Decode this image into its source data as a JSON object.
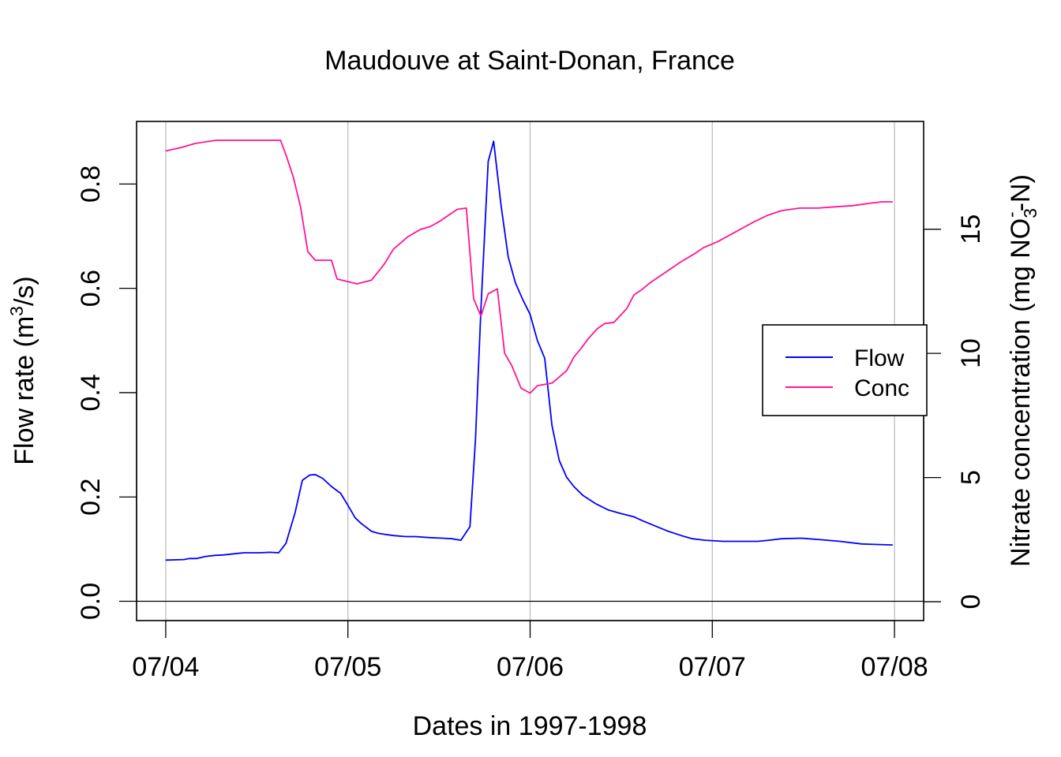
{
  "chart_data": {
    "type": "line",
    "title": "Maudouve at Saint-Donan, France",
    "xlabel": "Dates in 1997-1998",
    "ylabel_left": {
      "main": "Flow rate (m",
      "sup": "3",
      "end": "/s)"
    },
    "ylabel_right": {
      "main": "Nitrate concentration (mg NO",
      "sub": "3",
      "sup": "-",
      "end": "-N)"
    },
    "x_ticks": [
      {
        "value": 0,
        "label": "07/04"
      },
      {
        "value": 1,
        "label": "07/05"
      },
      {
        "value": 2,
        "label": "07/06"
      },
      {
        "value": 3,
        "label": "07/07"
      },
      {
        "value": 4,
        "label": "07/08"
      }
    ],
    "x_range": [
      -0.16,
      4.16
    ],
    "y_left_ticks": [
      {
        "value": 0,
        "label": "0.0"
      },
      {
        "value": 0.2,
        "label": "0.2"
      },
      {
        "value": 0.4,
        "label": "0.4"
      },
      {
        "value": 0.6,
        "label": "0.6"
      },
      {
        "value": 0.8,
        "label": "0.8"
      }
    ],
    "y_left_range": [
      -0.037,
      0.92
    ],
    "y_right_ticks": [
      {
        "value": 0,
        "label": "0"
      },
      {
        "value": 5,
        "label": "5"
      },
      {
        "value": 10,
        "label": "10"
      },
      {
        "value": 15,
        "label": "15"
      }
    ],
    "y_right_range": [
      -0.76,
      19.34
    ],
    "vertical_grid": true,
    "legend_position": "right",
    "series": [
      {
        "name": "Flow",
        "axis": "left",
        "color": "#0000ff",
        "points": [
          [
            0.0,
            0.079
          ],
          [
            0.1,
            0.08
          ],
          [
            0.13,
            0.082
          ],
          [
            0.17,
            0.082
          ],
          [
            0.22,
            0.086
          ],
          [
            0.27,
            0.088
          ],
          [
            0.32,
            0.089
          ],
          [
            0.4,
            0.092
          ],
          [
            0.43,
            0.093
          ],
          [
            0.52,
            0.093
          ],
          [
            0.57,
            0.094
          ],
          [
            0.62,
            0.093
          ],
          [
            0.66,
            0.111
          ],
          [
            0.71,
            0.17
          ],
          [
            0.75,
            0.232
          ],
          [
            0.79,
            0.242
          ],
          [
            0.82,
            0.243
          ],
          [
            0.86,
            0.236
          ],
          [
            0.91,
            0.22
          ],
          [
            0.96,
            0.207
          ],
          [
            1.0,
            0.184
          ],
          [
            1.04,
            0.16
          ],
          [
            1.07,
            0.15
          ],
          [
            1.13,
            0.134
          ],
          [
            1.17,
            0.13
          ],
          [
            1.25,
            0.126
          ],
          [
            1.32,
            0.124
          ],
          [
            1.37,
            0.124
          ],
          [
            1.45,
            0.122
          ],
          [
            1.52,
            0.121
          ],
          [
            1.57,
            0.12
          ],
          [
            1.62,
            0.117
          ],
          [
            1.67,
            0.143
          ],
          [
            1.7,
            0.31
          ],
          [
            1.73,
            0.56
          ],
          [
            1.77,
            0.843
          ],
          [
            1.8,
            0.882
          ],
          [
            1.84,
            0.76
          ],
          [
            1.88,
            0.66
          ],
          [
            1.92,
            0.61
          ],
          [
            1.96,
            0.578
          ],
          [
            2.0,
            0.55
          ],
          [
            2.04,
            0.5
          ],
          [
            2.08,
            0.466
          ],
          [
            2.12,
            0.337
          ],
          [
            2.16,
            0.27
          ],
          [
            2.2,
            0.238
          ],
          [
            2.24,
            0.22
          ],
          [
            2.29,
            0.203
          ],
          [
            2.36,
            0.187
          ],
          [
            2.43,
            0.175
          ],
          [
            2.5,
            0.168
          ],
          [
            2.57,
            0.162
          ],
          [
            2.62,
            0.154
          ],
          [
            2.69,
            0.144
          ],
          [
            2.76,
            0.134
          ],
          [
            2.83,
            0.126
          ],
          [
            2.89,
            0.12
          ],
          [
            2.96,
            0.117
          ],
          [
            3.06,
            0.115
          ],
          [
            3.16,
            0.115
          ],
          [
            3.25,
            0.115
          ],
          [
            3.31,
            0.117
          ],
          [
            3.38,
            0.12
          ],
          [
            3.49,
            0.121
          ],
          [
            3.6,
            0.118
          ],
          [
            3.7,
            0.115
          ],
          [
            3.82,
            0.11
          ],
          [
            3.89,
            0.109
          ],
          [
            3.99,
            0.108
          ]
        ]
      },
      {
        "name": "Conc",
        "axis": "right",
        "color": "#ff1493",
        "points": [
          [
            0.0,
            18.15
          ],
          [
            0.09,
            18.3
          ],
          [
            0.16,
            18.45
          ],
          [
            0.23,
            18.53
          ],
          [
            0.28,
            18.58
          ],
          [
            0.36,
            18.58
          ],
          [
            0.45,
            18.58
          ],
          [
            0.55,
            18.58
          ],
          [
            0.63,
            18.58
          ],
          [
            0.66,
            18.0
          ],
          [
            0.7,
            17.1
          ],
          [
            0.74,
            15.9
          ],
          [
            0.78,
            14.1
          ],
          [
            0.82,
            13.75
          ],
          [
            0.91,
            13.75
          ],
          [
            0.94,
            13.0
          ],
          [
            1.05,
            12.8
          ],
          [
            1.13,
            12.95
          ],
          [
            1.2,
            13.6
          ],
          [
            1.25,
            14.2
          ],
          [
            1.33,
            14.7
          ],
          [
            1.4,
            15.0
          ],
          [
            1.45,
            15.1
          ],
          [
            1.5,
            15.3
          ],
          [
            1.55,
            15.55
          ],
          [
            1.6,
            15.8
          ],
          [
            1.65,
            15.85
          ],
          [
            1.69,
            12.2
          ],
          [
            1.73,
            11.5
          ],
          [
            1.77,
            12.4
          ],
          [
            1.82,
            12.6
          ],
          [
            1.86,
            10.0
          ],
          [
            1.9,
            9.5
          ],
          [
            1.95,
            8.6
          ],
          [
            2.0,
            8.4
          ],
          [
            2.04,
            8.7
          ],
          [
            2.12,
            8.8
          ],
          [
            2.16,
            9.05
          ],
          [
            2.2,
            9.3
          ],
          [
            2.24,
            9.85
          ],
          [
            2.28,
            10.2
          ],
          [
            2.32,
            10.6
          ],
          [
            2.37,
            11.0
          ],
          [
            2.41,
            11.2
          ],
          [
            2.46,
            11.25
          ],
          [
            2.53,
            11.8
          ],
          [
            2.57,
            12.35
          ],
          [
            2.61,
            12.55
          ],
          [
            2.66,
            12.85
          ],
          [
            2.71,
            13.1
          ],
          [
            2.77,
            13.4
          ],
          [
            2.83,
            13.7
          ],
          [
            2.9,
            14.0
          ],
          [
            2.95,
            14.25
          ],
          [
            3.03,
            14.5
          ],
          [
            3.08,
            14.7
          ],
          [
            3.13,
            14.9
          ],
          [
            3.18,
            15.1
          ],
          [
            3.23,
            15.3
          ],
          [
            3.3,
            15.55
          ],
          [
            3.38,
            15.75
          ],
          [
            3.48,
            15.85
          ],
          [
            3.58,
            15.85
          ],
          [
            3.67,
            15.9
          ],
          [
            3.77,
            15.95
          ],
          [
            3.87,
            16.05
          ],
          [
            3.93,
            16.1
          ],
          [
            3.99,
            16.1
          ]
        ]
      }
    ]
  }
}
